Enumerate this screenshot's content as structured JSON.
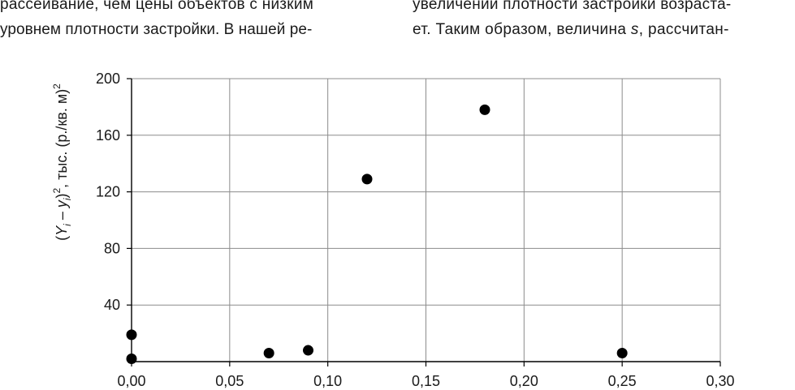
{
  "text": {
    "left_line_1": "рассеивание, чем цены объектов с низким",
    "left_line_2": "уровнем плотности застройки. В нашей ре-",
    "right_line_1": "увеличении плотности застройки возраста-",
    "right_line_2_before": "ет. Таким образом, величина ",
    "right_line_2_var": "s",
    "right_line_2_after": ", рассчитан-"
  },
  "chart_data": {
    "type": "scatter",
    "ylabel_parts": {
      "open": "(",
      "Y": "Y",
      "i1": "i",
      "minus": " – ",
      "y": "y",
      "i2": "i",
      "close": ")",
      "sup1": "2",
      "rest": ", тыс. (р./кв. м)",
      "sup2": "2"
    },
    "xlim": [
      0,
      0.3
    ],
    "ylim": [
      0,
      200
    ],
    "xticks": [
      "0,00",
      "0,05",
      "0,10",
      "0,15",
      "0,20",
      "0,25",
      "0,30"
    ],
    "yticks": [
      "40",
      "80",
      "120",
      "160",
      "200"
    ],
    "grid": true,
    "marker_color": "#000000",
    "points": [
      {
        "x": 0.0,
        "y": 19
      },
      {
        "x": 0.0,
        "y": 2
      },
      {
        "x": 0.07,
        "y": 6
      },
      {
        "x": 0.09,
        "y": 8
      },
      {
        "x": 0.12,
        "y": 129
      },
      {
        "x": 0.18,
        "y": 178
      },
      {
        "x": 0.25,
        "y": 6
      }
    ]
  }
}
